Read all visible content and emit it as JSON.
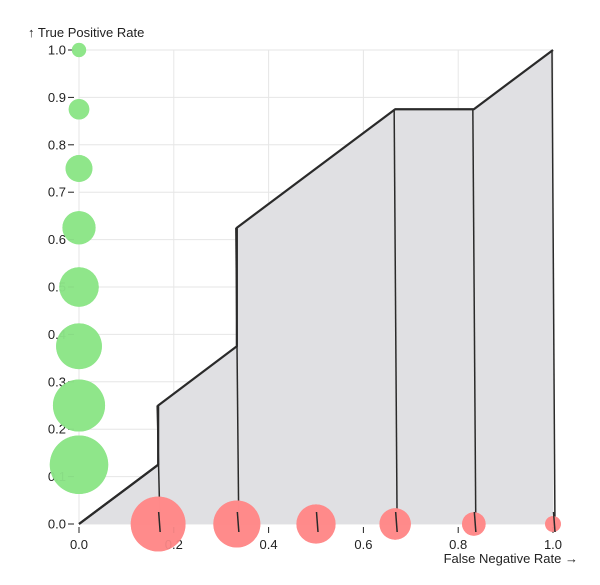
{
  "chart_data": {
    "type": "area",
    "ylabel": "↑ True Positive Rate",
    "xlabel": "False Negative Rate →",
    "xlim": [
      0,
      1
    ],
    "ylim": [
      0,
      1
    ],
    "grid": true,
    "x_ticks": [
      "0.0",
      "0.2",
      "0.4",
      "0.6",
      "0.8",
      "1.0"
    ],
    "y_ticks": [
      "0.0",
      "0.1",
      "0.2",
      "0.3",
      "0.4",
      "0.5",
      "0.6",
      "0.7",
      "0.8",
      "0.9",
      "1.0"
    ],
    "curve": [
      {
        "x": 0.0,
        "y": 0.0
      },
      {
        "x": 0.167,
        "y": 0.125
      },
      {
        "x": 0.167,
        "y": 0.25
      },
      {
        "x": 0.333,
        "y": 0.375
      },
      {
        "x": 0.333,
        "y": 0.625
      },
      {
        "x": 0.667,
        "y": 0.875
      },
      {
        "x": 0.833,
        "y": 0.875
      },
      {
        "x": 1.0,
        "y": 1.0
      }
    ],
    "area_color": "#e0e0e3",
    "line_color": "#2a2a2a",
    "positive_color": "#8ee68a",
    "negative_color": "#ff8a8a",
    "positive_points": [
      {
        "x": 0,
        "y": 1.0,
        "size": 1
      },
      {
        "x": 0,
        "y": 0.875,
        "size": 2
      },
      {
        "x": 0,
        "y": 0.75,
        "size": 3
      },
      {
        "x": 0,
        "y": 0.625,
        "size": 4
      },
      {
        "x": 0,
        "y": 0.5,
        "size": 5
      },
      {
        "x": 0,
        "y": 0.375,
        "size": 6
      },
      {
        "x": 0,
        "y": 0.25,
        "size": 7
      },
      {
        "x": 0,
        "y": 0.125,
        "size": 8
      }
    ],
    "negative_points": [
      {
        "x": 0.167,
        "y": 0,
        "size": 6
      },
      {
        "x": 0.333,
        "y": 0,
        "size": 5
      },
      {
        "x": 0.5,
        "y": 0,
        "size": 4
      },
      {
        "x": 0.667,
        "y": 0,
        "size": 3
      },
      {
        "x": 0.833,
        "y": 0,
        "size": 2
      },
      {
        "x": 1.0,
        "y": 0,
        "size": 1
      }
    ]
  }
}
